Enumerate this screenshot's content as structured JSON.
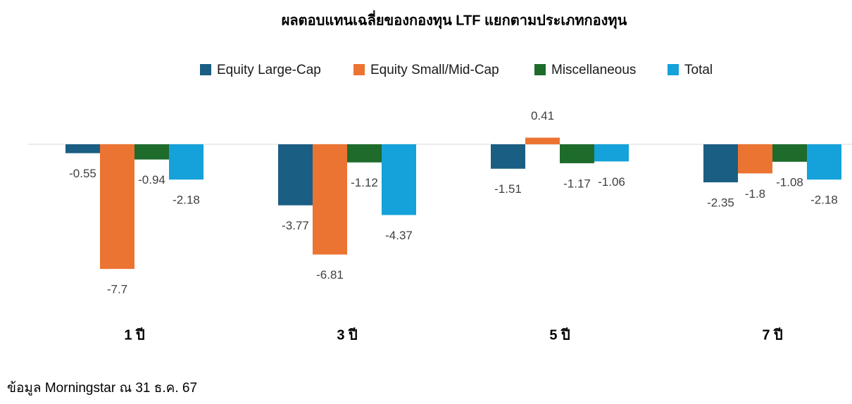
{
  "chart_data": {
    "type": "bar",
    "title": "ผลตอบแทนเฉลี่ยของกองทุน LTF แยกตามประเภทกองทุน",
    "categories": [
      "1 ปี",
      "3 ปี",
      "5 ปี",
      "7 ปี"
    ],
    "series": [
      {
        "name": "Equity Large-Cap",
        "color": "#1b5e83",
        "values": [
          -0.55,
          -3.77,
          -1.51,
          -2.35
        ]
      },
      {
        "name": "Equity Small/Mid-Cap",
        "color": "#ec7432",
        "values": [
          -7.7,
          -6.81,
          0.41,
          -1.8
        ]
      },
      {
        "name": "Miscellaneous",
        "color": "#1e6b2b",
        "values": [
          -0.94,
          -1.12,
          -1.17,
          -1.08
        ]
      },
      {
        "name": "Total",
        "color": "#15a1d9",
        "values": [
          -2.18,
          -4.37,
          -1.06,
          -2.18
        ]
      }
    ],
    "ylim": [
      -9,
      1
    ],
    "legend": "top",
    "source": "ข้อมูล Morningstar ณ 31 ธ.ค. 67"
  }
}
